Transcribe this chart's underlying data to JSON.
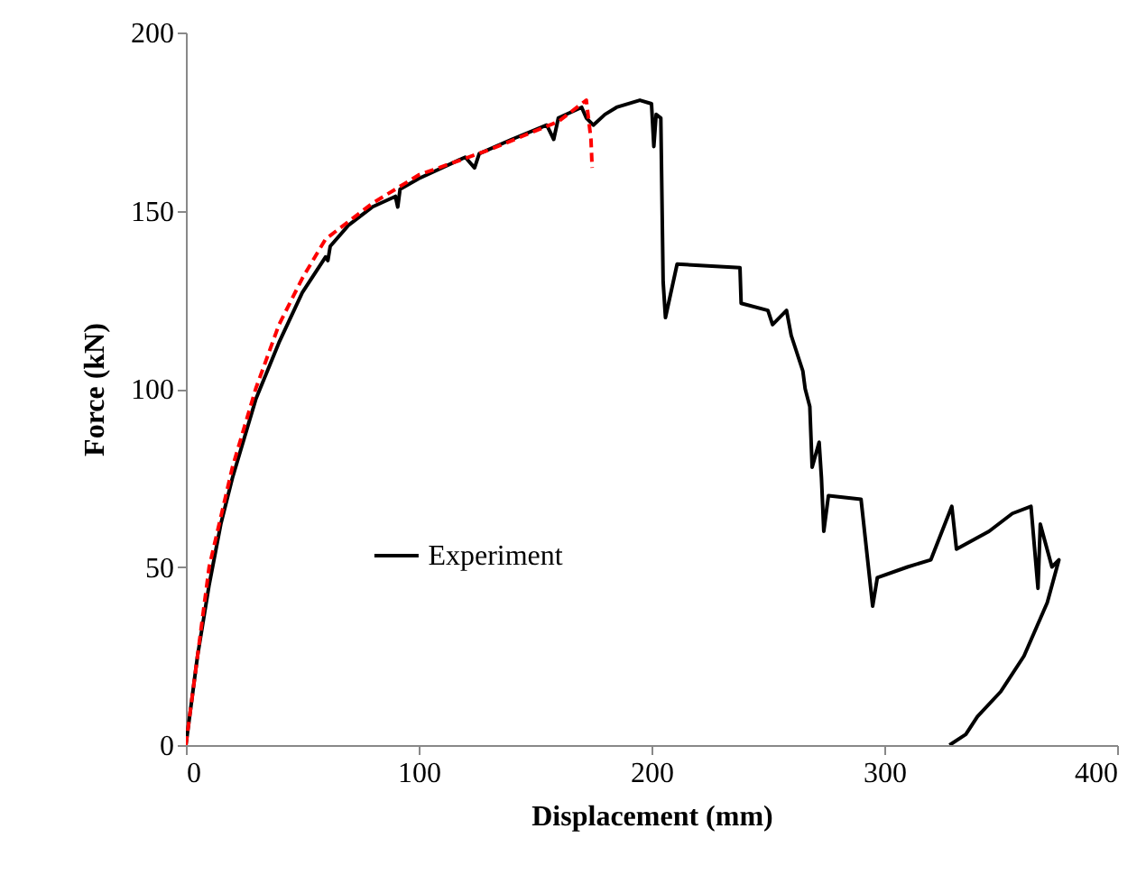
{
  "chart_data": {
    "type": "line",
    "xlabel": "Displacement (mm)",
    "ylabel": "Force (kN)",
    "xlim": [
      0,
      400
    ],
    "ylim": [
      0,
      200
    ],
    "xticks": [
      0,
      100,
      200,
      300,
      400
    ],
    "yticks": [
      0,
      50,
      100,
      150,
      200
    ],
    "grid": false,
    "legend": "bottom left",
    "marker": "none",
    "series": [
      {
        "name": "Experiment",
        "color": "#000000",
        "line_style": "solid",
        "x": [
          0,
          5,
          10,
          15,
          20,
          30,
          40,
          50,
          60,
          61,
          62,
          70,
          80,
          90,
          91,
          92,
          100,
          120,
          124,
          126,
          140,
          155,
          158,
          160,
          170,
          172,
          175,
          180,
          185,
          195,
          200,
          201,
          202,
          204,
          205,
          206,
          211,
          238,
          238.5,
          250,
          252,
          258,
          260,
          265,
          266,
          268,
          269,
          272,
          273,
          274,
          276,
          290,
          295,
          297,
          310,
          320,
          329,
          331,
          345,
          355,
          363,
          366,
          367,
          372,
          375,
          370,
          360,
          350,
          340,
          335,
          328
        ],
        "values": [
          0,
          25,
          45,
          62,
          75,
          97,
          113,
          127,
          137,
          136,
          140,
          146,
          151,
          154,
          151,
          156,
          159,
          165,
          162,
          166,
          170,
          174,
          170,
          176,
          179,
          176,
          174,
          177,
          179,
          181,
          180,
          168,
          177,
          176,
          130,
          120,
          135,
          134,
          124,
          122,
          118,
          122,
          115,
          105,
          100,
          95,
          78,
          85,
          75,
          60,
          70,
          69,
          39,
          47,
          50,
          52,
          67,
          55,
          60,
          65,
          67,
          44,
          62,
          50,
          52,
          40,
          25,
          15,
          8,
          3,
          0
        ]
      },
      {
        "color": "#ff0000",
        "line_style": "dashed",
        "x": [
          0,
          10,
          20,
          30,
          40,
          50,
          60,
          80,
          100,
          130,
          160,
          170,
          172,
          174,
          174.5
        ],
        "values": [
          0,
          50,
          78,
          100,
          118,
          131,
          142,
          152,
          160,
          167,
          175,
          180,
          181,
          170,
          162
        ]
      }
    ]
  }
}
